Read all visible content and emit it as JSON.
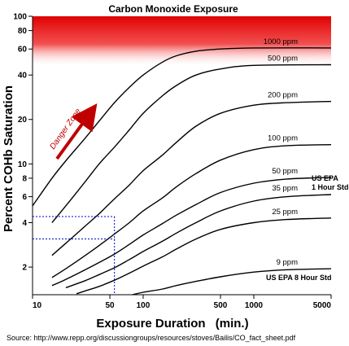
{
  "chart_data": {
    "type": "line",
    "title": "Carbon Monoxide Exposure",
    "xlabel": "Exposure Duration",
    "xlabel_unit": "(min.)",
    "ylabel": "Percent COHb Saturation",
    "x_scale": "log",
    "y_scale": "log",
    "xlim": [
      10,
      5000
    ],
    "ylim": [
      1.3,
      100
    ],
    "x_ticks": [
      10,
      50,
      100,
      500,
      1000,
      5000
    ],
    "y_ticks": [
      2,
      4,
      6,
      8,
      10,
      20,
      40,
      60,
      80,
      100
    ],
    "danger_zone_label": "Danger Zone",
    "series": [
      {
        "name": "1000 ppm",
        "x": [
          10,
          15,
          20,
          30,
          40,
          55,
          75,
          100,
          150,
          200,
          300,
          500,
          1000,
          5000
        ],
        "y": [
          5.2,
          8,
          10.5,
          15,
          19.5,
          26,
          33,
          40,
          49,
          54,
          58,
          60,
          61,
          61
        ]
      },
      {
        "name": "500 ppm",
        "x": [
          15,
          20,
          30,
          40,
          55,
          75,
          100,
          150,
          200,
          300,
          500,
          1000,
          5000
        ],
        "y": [
          4,
          5.2,
          7.6,
          10,
          13,
          17,
          22,
          29,
          34,
          40,
          44,
          46.5,
          47
        ]
      },
      {
        "name": "200 ppm",
        "x": [
          15,
          20,
          30,
          40,
          55,
          75,
          100,
          150,
          200,
          300,
          500,
          1000,
          2000,
          5000
        ],
        "y": [
          2.4,
          2.9,
          3.8,
          4.6,
          5.8,
          7.2,
          9,
          11.5,
          14,
          18,
          22,
          25,
          26,
          26.5
        ]
      },
      {
        "name": "100 ppm",
        "x": [
          15,
          20,
          30,
          40,
          55,
          75,
          100,
          150,
          200,
          300,
          500,
          1000,
          2000,
          5000
        ],
        "y": [
          1.7,
          1.95,
          2.4,
          2.8,
          3.35,
          4,
          4.8,
          5.9,
          7,
          8.6,
          10.6,
          12.5,
          13.3,
          13.5
        ]
      },
      {
        "name": "50 ppm",
        "x": [
          15,
          20,
          30,
          40,
          55,
          75,
          100,
          150,
          200,
          300,
          500,
          1000,
          2000,
          5000
        ],
        "y": [
          1.5,
          1.65,
          1.92,
          2.15,
          2.45,
          2.85,
          3.3,
          3.95,
          4.5,
          5.3,
          6.4,
          7.4,
          7.9,
          8.1
        ]
      },
      {
        "name": "35 ppm",
        "x": [
          20,
          30,
          40,
          55,
          75,
          100,
          150,
          200,
          300,
          500,
          1000,
          2000,
          5000
        ],
        "y": [
          1.45,
          1.62,
          1.78,
          1.98,
          2.25,
          2.55,
          3,
          3.4,
          4,
          4.8,
          5.6,
          6,
          6.2
        ]
      },
      {
        "name": "25 ppm",
        "x": [
          25,
          30,
          40,
          55,
          75,
          100,
          150,
          200,
          300,
          500,
          1000,
          2000,
          5000
        ],
        "y": [
          1.32,
          1.38,
          1.48,
          1.63,
          1.82,
          2.03,
          2.35,
          2.65,
          3.1,
          3.6,
          4,
          4.2,
          4.3
        ]
      },
      {
        "name": "9 ppm",
        "x": [
          80,
          100,
          150,
          200,
          300,
          500,
          1000,
          2000,
          5000
        ],
        "y": [
          1.3,
          1.35,
          1.42,
          1.5,
          1.6,
          1.72,
          1.85,
          1.92,
          1.95
        ]
      }
    ],
    "annotations": [
      {
        "text": "US EPA",
        "near": "35 ppm"
      },
      {
        "text": "1 Hour Std",
        "near": "35 ppm"
      },
      {
        "text": "US EPA 8 Hour Std",
        "near": "9 ppm"
      }
    ],
    "reference_lines": {
      "x": 55,
      "y": [
        3.1,
        4.4
      ]
    },
    "grid": false,
    "danger_gradient": {
      "top_color": "#e00000",
      "bottom_color": "#ffffff"
    }
  },
  "source": "Source: http://www.repp.org/discussiongroups/resources/stoves/Bailis/CO_fact_sheet.pdf"
}
